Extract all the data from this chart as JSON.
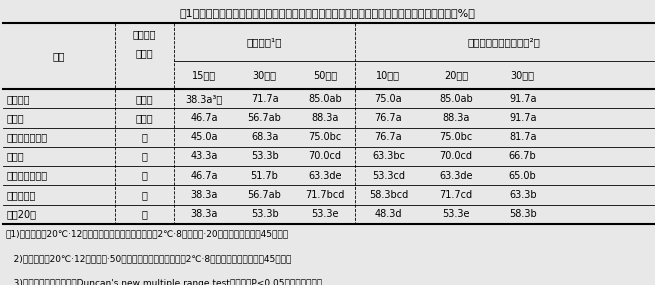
{
  "title": "表1．接種後埋雪する方法での育苗期間、ハードニング処理期間と菌核病菌接種後の生存率（%）",
  "header_col1": "品種",
  "header_col2_line1": "圃場での",
  "header_col2_line2": "抵抗性",
  "header_span1": "育苗期間¹）",
  "header_span2": "ハードニング処理期間²）",
  "sub_headers": [
    "15日間",
    "30日間",
    "50日間",
    "10日間",
    "20日間",
    "30日間"
  ],
  "rows": [
    [
      "ソーニア",
      "やや強",
      "38.3a³）",
      "71.7a",
      "85.0ab",
      "75.0a",
      "85.0ab",
      "91.7a"
    ],
    [
      "ミルカ",
      "やや強",
      "46.7a",
      "56.7ab",
      "88.3a",
      "76.7a",
      "88.3a",
      "91.7a"
    ],
    [
      "ノースホワイト",
      "中",
      "45.0a",
      "68.3a",
      "75.0bc",
      "76.7a",
      "75.0bc",
      "81.7a"
    ],
    [
      "フイア",
      "中",
      "43.3a",
      "53.3b",
      "70.0cd",
      "63.3bc",
      "70.0cd",
      "66.7b"
    ],
    [
      "ケントワイルド",
      "中",
      "46.7a",
      "51.7b",
      "63.3de",
      "53.3cd",
      "63.3de",
      "65.0b"
    ],
    [
      "マキバシロ",
      "弱",
      "38.3a",
      "56.7ab",
      "71.7bcd",
      "58.3bcd",
      "71.7cd",
      "63.3b"
    ],
    [
      "東北20号",
      "弱",
      "38.3a",
      "53.3b",
      "53.3e",
      "48.3d",
      "53.3e",
      "58.3b"
    ]
  ],
  "note_lines": [
    "注1)育苗条件：20℃·12時間日長、ハードニング処理：2℃·8時間日長·20日間、埋雪期間：45日間。",
    "   2)育苗条件：20℃·12時間日長·50日間、ハードニング処理：2℃·8時間日長、埋雪期間：45日間。",
    "   3)異なる英小文字間にはDuncan's new multiple range testにより、P<0.05で有意差あり。"
  ],
  "bg_color": "#e8e8e8",
  "lw_thick": 1.5,
  "lw_thin": 0.6
}
